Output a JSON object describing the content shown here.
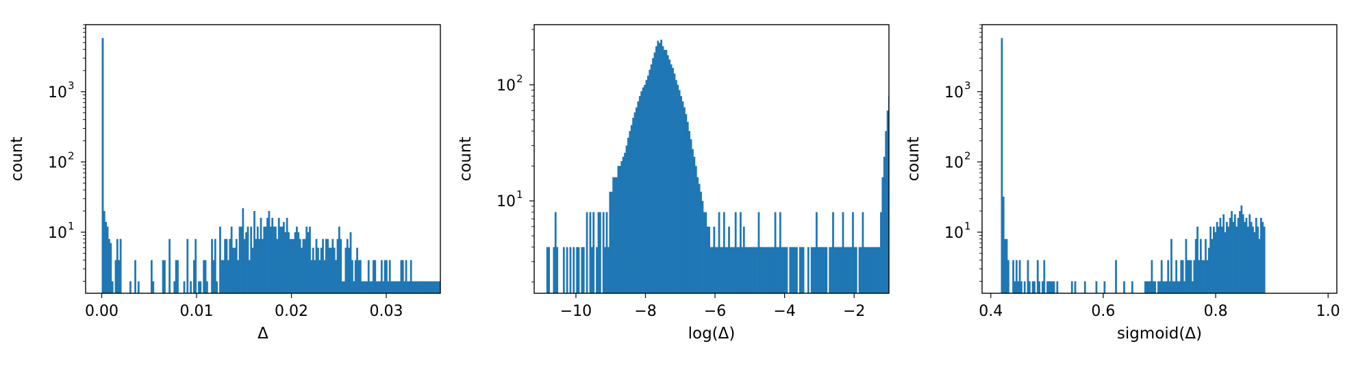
{
  "chart_data": [
    {
      "type": "histogram",
      "xlabel": "Δ",
      "ylabel": "count",
      "yscale": "log",
      "xlim": [
        -0.0017,
        0.0357
      ],
      "ylim": [
        1.35,
        9000
      ],
      "xticks": [
        {
          "value": 0.0,
          "label": "0.00"
        },
        {
          "value": 0.01,
          "label": "0.01"
        },
        {
          "value": 0.02,
          "label": "0.02"
        },
        {
          "value": 0.03,
          "label": "0.03"
        }
      ],
      "yticks": [
        {
          "value": 10,
          "label": "10",
          "exp": "1"
        },
        {
          "value": 100,
          "label": "10",
          "exp": "2"
        },
        {
          "value": 1000,
          "label": "10",
          "exp": "3"
        }
      ],
      "color": "#1f77b4",
      "bins": {
        "start": 0.0,
        "width": 0.000172,
        "counts": [
          5800,
          20,
          14,
          12,
          8,
          7,
          2,
          0,
          4,
          8,
          4,
          8,
          0,
          0,
          0,
          0,
          0,
          2,
          0,
          0,
          4,
          0,
          2,
          0,
          0,
          0,
          0,
          0,
          0,
          0,
          4,
          2,
          0,
          0,
          0,
          0,
          0,
          4,
          4,
          0,
          0,
          8,
          0,
          0,
          2,
          4,
          4,
          0,
          0,
          0,
          2,
          0,
          8,
          0,
          2,
          0,
          4,
          8,
          0,
          2,
          2,
          0,
          4,
          4,
          2,
          0,
          0,
          8,
          4,
          8,
          2,
          0,
          12,
          4,
          4,
          8,
          8,
          4,
          8,
          12,
          6,
          6,
          8,
          4,
          12,
          12,
          22,
          8,
          10,
          12,
          4,
          12,
          6,
          20,
          8,
          12,
          8,
          16,
          8,
          12,
          12,
          16,
          20,
          12,
          16,
          12,
          12,
          8,
          16,
          12,
          12,
          14,
          10,
          16,
          10,
          8,
          8,
          8,
          10,
          12,
          10,
          8,
          6,
          8,
          8,
          12,
          10,
          12,
          4,
          6,
          4,
          8,
          6,
          4,
          6,
          8,
          4,
          8,
          8,
          6,
          6,
          8,
          6,
          4,
          8,
          12,
          8,
          2,
          2,
          6,
          8,
          6,
          10,
          4,
          2,
          4,
          6,
          4,
          4,
          2,
          2,
          2,
          2,
          4,
          2,
          2,
          4,
          4,
          2,
          2,
          2,
          4,
          2,
          4,
          4,
          2,
          4,
          2,
          2,
          2,
          2,
          2,
          2,
          4,
          4,
          2,
          4,
          2,
          2,
          4,
          2,
          2,
          2,
          2,
          2,
          2,
          2,
          2,
          2,
          2,
          2,
          2,
          2,
          2,
          2,
          2,
          2,
          2,
          2,
          2,
          2,
          2,
          2,
          2,
          2,
          2,
          2,
          2,
          2
        ]
      },
      "extra_bars": [
        {
          "x": 3e-05,
          "count": 5800
        },
        {
          "x": 0.034,
          "count": 2
        },
        {
          "x": 0.0341,
          "count": 2
        }
      ]
    },
    {
      "type": "histogram",
      "xlabel": "log(Δ)",
      "ylabel": "count",
      "yscale": "log",
      "xlim": [
        -11.2,
        -1.0
      ],
      "ylim": [
        1.6,
        330
      ],
      "xticks": [
        {
          "value": -10,
          "label": "−10"
        },
        {
          "value": -8,
          "label": "−8"
        },
        {
          "value": -6,
          "label": "−6"
        },
        {
          "value": -4,
          "label": "−4"
        },
        {
          "value": -2,
          "label": "−2"
        }
      ],
      "yticks": [
        {
          "value": 10,
          "label": "10",
          "exp": "1"
        },
        {
          "value": 100,
          "label": "10",
          "exp": "2"
        }
      ],
      "color": "#1f77b4",
      "bins": {
        "start": -10.85,
        "width": 0.0475,
        "counts": [
          4,
          4,
          0,
          0,
          4,
          8,
          4,
          0,
          0,
          0,
          4,
          0,
          4,
          0,
          4,
          0,
          4,
          0,
          4,
          4,
          0,
          4,
          4,
          0,
          8,
          0,
          8,
          4,
          8,
          0,
          4,
          8,
          8,
          0,
          8,
          4,
          8,
          4,
          12,
          12,
          16,
          16,
          16,
          20,
          20,
          22,
          24,
          26,
          30,
          35,
          40,
          45,
          52,
          58,
          64,
          72,
          80,
          88,
          95,
          100,
          110,
          120,
          135,
          150,
          170,
          190,
          215,
          240,
          230,
          245,
          215,
          200,
          200,
          180,
          165,
          150,
          140,
          125,
          110,
          100,
          90,
          80,
          72,
          64,
          56,
          48,
          40,
          34,
          28,
          24,
          20,
          16,
          14,
          12,
          10,
          8,
          8,
          6,
          6,
          4,
          4,
          6,
          4,
          4,
          8,
          4,
          4,
          8,
          4,
          4,
          6,
          4,
          4,
          4,
          8,
          4,
          4,
          8,
          4,
          6,
          4,
          4,
          4,
          4,
          4,
          4,
          4,
          4,
          8,
          4,
          4,
          4,
          4,
          4,
          4,
          4,
          4,
          4,
          8,
          4,
          4,
          8,
          4,
          4,
          4,
          4,
          0,
          4,
          4,
          4,
          4,
          4,
          0,
          4,
          4,
          4,
          0,
          0,
          4,
          0,
          4,
          4,
          4,
          8,
          4,
          4,
          4,
          4,
          4,
          4,
          0,
          4,
          4,
          8,
          4,
          4,
          4,
          4,
          4,
          8,
          4,
          4,
          4,
          4,
          4,
          8,
          4,
          4,
          0,
          4,
          4,
          8,
          4,
          4,
          4,
          4,
          4,
          4,
          4,
          4,
          4,
          4,
          8,
          16,
          24,
          40,
          60,
          80,
          96,
          100,
          92,
          80,
          64,
          48,
          32,
          20,
          12,
          8,
          4
        ]
      }
    },
    {
      "type": "histogram",
      "xlabel": "sigmoid(Δ)",
      "ylabel": "count",
      "yscale": "log",
      "xlim": [
        0.3845,
        1.0155
      ],
      "ylim": [
        1.35,
        9000
      ],
      "xticks": [
        {
          "value": 0.4,
          "label": "0.4"
        },
        {
          "value": 0.6,
          "label": "0.6"
        },
        {
          "value": 0.8,
          "label": "0.8"
        },
        {
          "value": 1.0,
          "label": "1.0"
        }
      ],
      "yticks": [
        {
          "value": 10,
          "label": "10",
          "exp": "1"
        },
        {
          "value": 100,
          "label": "10",
          "exp": "2"
        },
        {
          "value": 1000,
          "label": "10",
          "exp": "3"
        }
      ],
      "color": "#1f77b4",
      "bins": {
        "start": 0.418,
        "width": 0.0029,
        "counts": [
          5800,
          32,
          8,
          8,
          4,
          0,
          0,
          4,
          2,
          4,
          2,
          4,
          2,
          0,
          2,
          0,
          4,
          2,
          0,
          2,
          2,
          0,
          4,
          2,
          0,
          2,
          4,
          0,
          2,
          2,
          2,
          2,
          2,
          0,
          2,
          0,
          0,
          0,
          0,
          0,
          0,
          0,
          0,
          2,
          0,
          2,
          0,
          0,
          0,
          0,
          0,
          2,
          0,
          0,
          0,
          0,
          0,
          0,
          2,
          0,
          0,
          0,
          0,
          2,
          0,
          0,
          0,
          0,
          0,
          0,
          4,
          0,
          0,
          0,
          0,
          2,
          0,
          0,
          0,
          0,
          2,
          0,
          0,
          0,
          0,
          0,
          0,
          0,
          2,
          2,
          2,
          2,
          4,
          2,
          2,
          0,
          2,
          2,
          4,
          2,
          2,
          2,
          4,
          2,
          8,
          2,
          2,
          4,
          2,
          2,
          4,
          4,
          2,
          8,
          4,
          4,
          4,
          2,
          4,
          8,
          12,
          4,
          8,
          4,
          4,
          8,
          4,
          6,
          12,
          8,
          12,
          10,
          14,
          12,
          16,
          12,
          18,
          10,
          14,
          12,
          16,
          20,
          14,
          18,
          12,
          16,
          20,
          24,
          18,
          14,
          16,
          12,
          18,
          14,
          12,
          10,
          16,
          12,
          8,
          16,
          14,
          12
        ]
      }
    }
  ]
}
